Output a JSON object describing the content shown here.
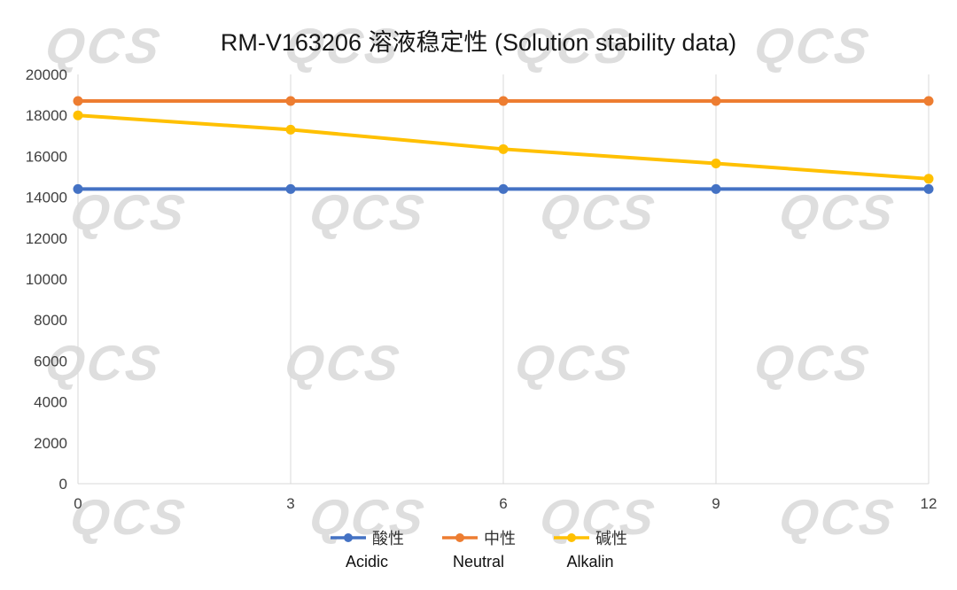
{
  "title": "RM-V163206 溶液稳定性 (Solution stability data)",
  "watermark": "QCS",
  "chart_data": {
    "type": "line",
    "title": "RM-V163206 溶液稳定性 (Solution stability data)",
    "x": [
      0,
      3,
      6,
      9,
      12
    ],
    "xticks": [
      0,
      3,
      6,
      9,
      12
    ],
    "yticks": [
      0,
      2000,
      4000,
      6000,
      8000,
      10000,
      12000,
      14000,
      16000,
      18000,
      20000
    ],
    "xlim": [
      0,
      12
    ],
    "ylim": [
      0,
      20000
    ],
    "grid": "vertical",
    "legend_position": "bottom",
    "series": [
      {
        "name": "酸性",
        "name_en": "Acidic",
        "color": "#4472C4",
        "values": [
          14400,
          14400,
          14400,
          14400,
          14400
        ]
      },
      {
        "name": "中性",
        "name_en": "Neutral",
        "color": "#ED7D31",
        "values": [
          18700,
          18700,
          18700,
          18700,
          18700
        ]
      },
      {
        "name": "碱性",
        "name_en": "Alkalin",
        "color": "#FFC000",
        "values": [
          18000,
          17300,
          16350,
          15650,
          14900
        ]
      }
    ]
  }
}
